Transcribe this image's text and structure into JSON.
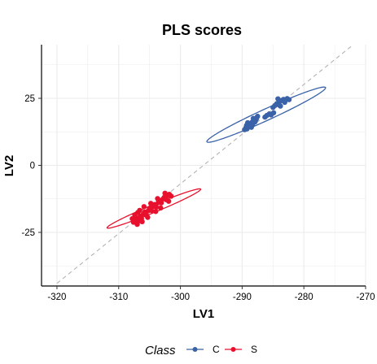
{
  "chart_data": {
    "type": "scatter",
    "title": "PLS scores",
    "xlabel": "LV1",
    "ylabel": "LV2",
    "xlim": [
      -322.5,
      -270
    ],
    "ylim": [
      -45,
      45
    ],
    "xticks": [
      -320,
      -310,
      -300,
      -290,
      -280,
      -270
    ],
    "yticks": [
      -25,
      0,
      25
    ],
    "grid": true,
    "legend": {
      "title": "Class",
      "position": "bottom"
    },
    "series": [
      {
        "name": "C",
        "color": "#3a62a8",
        "points": [
          [
            -289.6,
            13.3
          ],
          [
            -289.4,
            14.0
          ],
          [
            -289.2,
            13.6
          ],
          [
            -289.0,
            14.6
          ],
          [
            -288.9,
            15.2
          ],
          [
            -288.7,
            14.8
          ],
          [
            -288.6,
            15.6
          ],
          [
            -288.4,
            16.1
          ],
          [
            -288.3,
            15.3
          ],
          [
            -288.1,
            16.6
          ],
          [
            -288.0,
            17.0
          ],
          [
            -287.9,
            16.2
          ],
          [
            -287.7,
            17.4
          ],
          [
            -287.6,
            17.9
          ],
          [
            -287.5,
            18.3
          ],
          [
            -289.1,
            15.9
          ],
          [
            -288.5,
            14.2
          ],
          [
            -287.8,
            16.9
          ],
          [
            -289.3,
            14.9
          ],
          [
            -288.2,
            17.5
          ],
          [
            -286.3,
            18.0
          ],
          [
            -286.0,
            18.6
          ],
          [
            -285.6,
            19.2
          ],
          [
            -285.3,
            18.8
          ],
          [
            -284.9,
            19.6
          ],
          [
            -285.0,
            21.6
          ],
          [
            -284.7,
            22.3
          ],
          [
            -284.4,
            23.0
          ],
          [
            -284.1,
            22.6
          ],
          [
            -283.9,
            23.8
          ],
          [
            -283.6,
            24.2
          ],
          [
            -283.3,
            24.6
          ],
          [
            -283.0,
            24.3
          ],
          [
            -282.7,
            24.9
          ],
          [
            -282.4,
            24.5
          ],
          [
            -284.2,
            24.8
          ],
          [
            -283.8,
            22.1
          ],
          [
            -283.1,
            23.5
          ]
        ],
        "ellipse": {
          "center": [
            -286.1,
            18.9
          ],
          "semi_axes": [
            14.0,
            1.6
          ],
          "angle_deg": 47
        }
      },
      {
        "name": "S",
        "color": "#e8112d",
        "points": [
          [
            -307.6,
            -21.2
          ],
          [
            -307.3,
            -20.4
          ],
          [
            -307.1,
            -19.6
          ],
          [
            -306.8,
            -20.8
          ],
          [
            -306.5,
            -18.9
          ],
          [
            -306.3,
            -19.8
          ],
          [
            -306.0,
            -18.2
          ],
          [
            -305.8,
            -17.4
          ],
          [
            -305.5,
            -18.6
          ],
          [
            -305.2,
            -16.9
          ],
          [
            -305.0,
            -16.0
          ],
          [
            -304.7,
            -16.8
          ],
          [
            -304.4,
            -15.3
          ],
          [
            -304.2,
            -14.6
          ],
          [
            -303.9,
            -15.6
          ],
          [
            -303.6,
            -13.9
          ],
          [
            -303.4,
            -13.1
          ],
          [
            -303.1,
            -14.0
          ],
          [
            -302.8,
            -12.5
          ],
          [
            -302.6,
            -11.9
          ],
          [
            -302.3,
            -12.8
          ],
          [
            -302.0,
            -11.2
          ],
          [
            -301.8,
            -10.8
          ],
          [
            -301.5,
            -11.5
          ],
          [
            -307.4,
            -18.5
          ],
          [
            -306.9,
            -17.6
          ],
          [
            -306.2,
            -21.0
          ],
          [
            -305.3,
            -19.4
          ],
          [
            -304.8,
            -14.2
          ],
          [
            -303.2,
            -15.9
          ],
          [
            -302.5,
            -10.4
          ],
          [
            -307.8,
            -19.9
          ],
          [
            -306.6,
            -16.8
          ],
          [
            -304.0,
            -17.2
          ],
          [
            -301.9,
            -13.4
          ],
          [
            -305.9,
            -15.4
          ],
          [
            -307.0,
            -22.0
          ],
          [
            -303.7,
            -12.4
          ]
        ],
        "ellipse": {
          "center": [
            -304.3,
            -16.1
          ],
          "semi_axes": [
            10.5,
            1.1
          ],
          "angle_deg": 44
        }
      }
    ],
    "reference_line": {
      "style": "dashed",
      "color": "#b3b3b3",
      "from": [
        -320,
        -44
      ],
      "to": [
        -272,
        45
      ]
    }
  }
}
